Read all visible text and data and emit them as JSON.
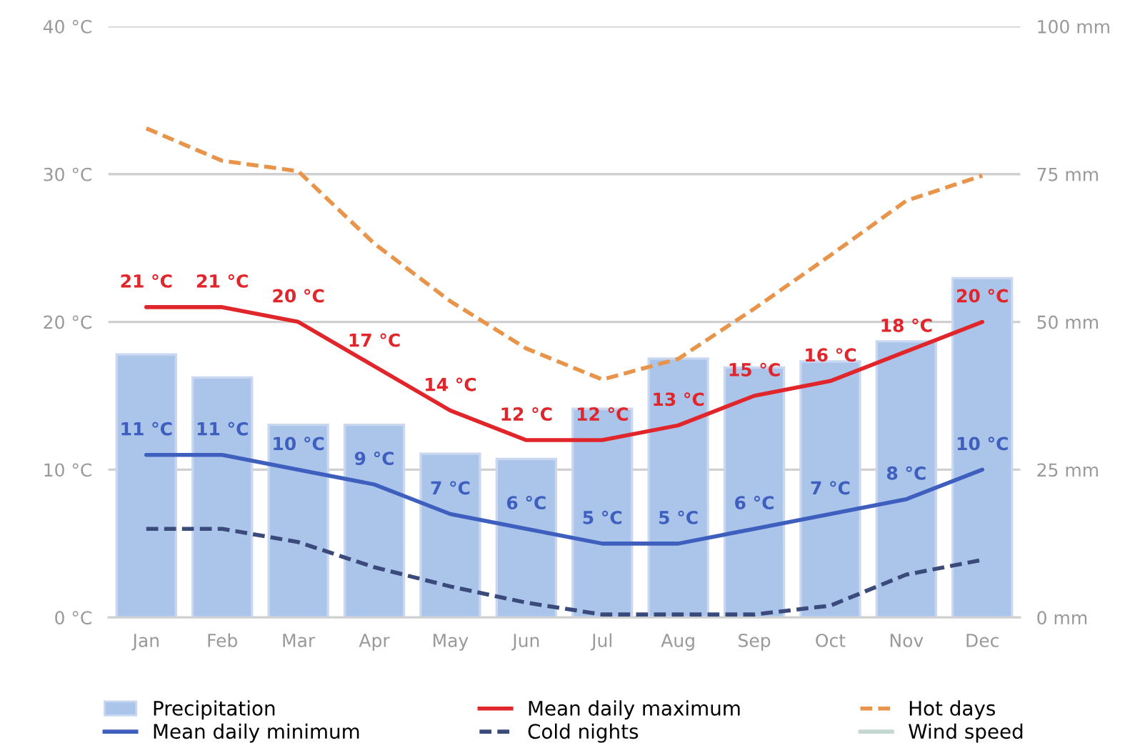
{
  "chart_data": {
    "type": "line",
    "categories": [
      "Jan",
      "Feb",
      "Mar",
      "Apr",
      "May",
      "Jun",
      "Jul",
      "Aug",
      "Sep",
      "Oct",
      "Nov",
      "Dec"
    ],
    "series": [
      {
        "name": "Precipitation",
        "type": "bar",
        "axis": "y2",
        "color": "#aac4ea",
        "values": [
          44.5,
          40.6,
          32.6,
          32.6,
          27.7,
          26.8,
          35.3,
          43.8,
          42.3,
          43.3,
          46.7,
          57.4
        ]
      },
      {
        "name": "Mean daily minimum",
        "color": "#3f5fbf",
        "line_style": "solid",
        "values": [
          11,
          11,
          10,
          9,
          7,
          6,
          5,
          5,
          6,
          7,
          8,
          10
        ],
        "value_labels": [
          "11 °C",
          "11 °C",
          "10 °C",
          "9 °C",
          "7 °C",
          "6 °C",
          "5 °C",
          "5 °C",
          "6 °C",
          "7 °C",
          "8 °C",
          "10 °C"
        ]
      },
      {
        "name": "Mean daily maximum",
        "color": "#e0262b",
        "line_style": "solid",
        "values": [
          21,
          21,
          20,
          17,
          14,
          12,
          12,
          13,
          15,
          16,
          18,
          20
        ],
        "value_labels": [
          "21 °C",
          "21 °C",
          "20 °C",
          "17 °C",
          "14 °C",
          "12 °C",
          "12 °C",
          "13 °C",
          "15 °C",
          "16 °C",
          "18 °C",
          "20 °C"
        ]
      },
      {
        "name": "Cold nights",
        "color": "#3a4a7a",
        "line_style": "dashed",
        "values": [
          6.0,
          6.0,
          5.1,
          3.4,
          2.1,
          1.0,
          0.2,
          0.2,
          0.2,
          0.8,
          2.9,
          3.9
        ]
      },
      {
        "name": "Hot days",
        "color": "#e8944a",
        "line_style": "dashed",
        "values": [
          33.1,
          30.9,
          30.2,
          25.3,
          21.4,
          18.2,
          16.1,
          17.5,
          20.9,
          24.5,
          28.2,
          29.9
        ]
      },
      {
        "name": "Wind speed",
        "color": "#c4d8d0",
        "line_style": "solid",
        "values": [
          null,
          null,
          null,
          null,
          null,
          null,
          null,
          null,
          null,
          null,
          null,
          null
        ]
      }
    ],
    "ylim": [
      0,
      40
    ],
    "yticks": [
      {
        "value": 0,
        "label": "0 °C"
      },
      {
        "value": 10,
        "label": "10 °C"
      },
      {
        "value": 20,
        "label": "20 °C"
      },
      {
        "value": 30,
        "label": "30 °C"
      },
      {
        "value": 40,
        "label": "40 °C"
      }
    ],
    "y2lim": [
      0,
      100
    ],
    "y2ticks": [
      {
        "value": 0,
        "label": "0 mm"
      },
      {
        "value": 25,
        "label": "25 mm"
      },
      {
        "value": 50,
        "label": "50 mm"
      },
      {
        "value": 75,
        "label": "75 mm"
      },
      {
        "value": 100,
        "label": "100 mm"
      }
    ],
    "grid": "y",
    "legend": "bottom"
  }
}
